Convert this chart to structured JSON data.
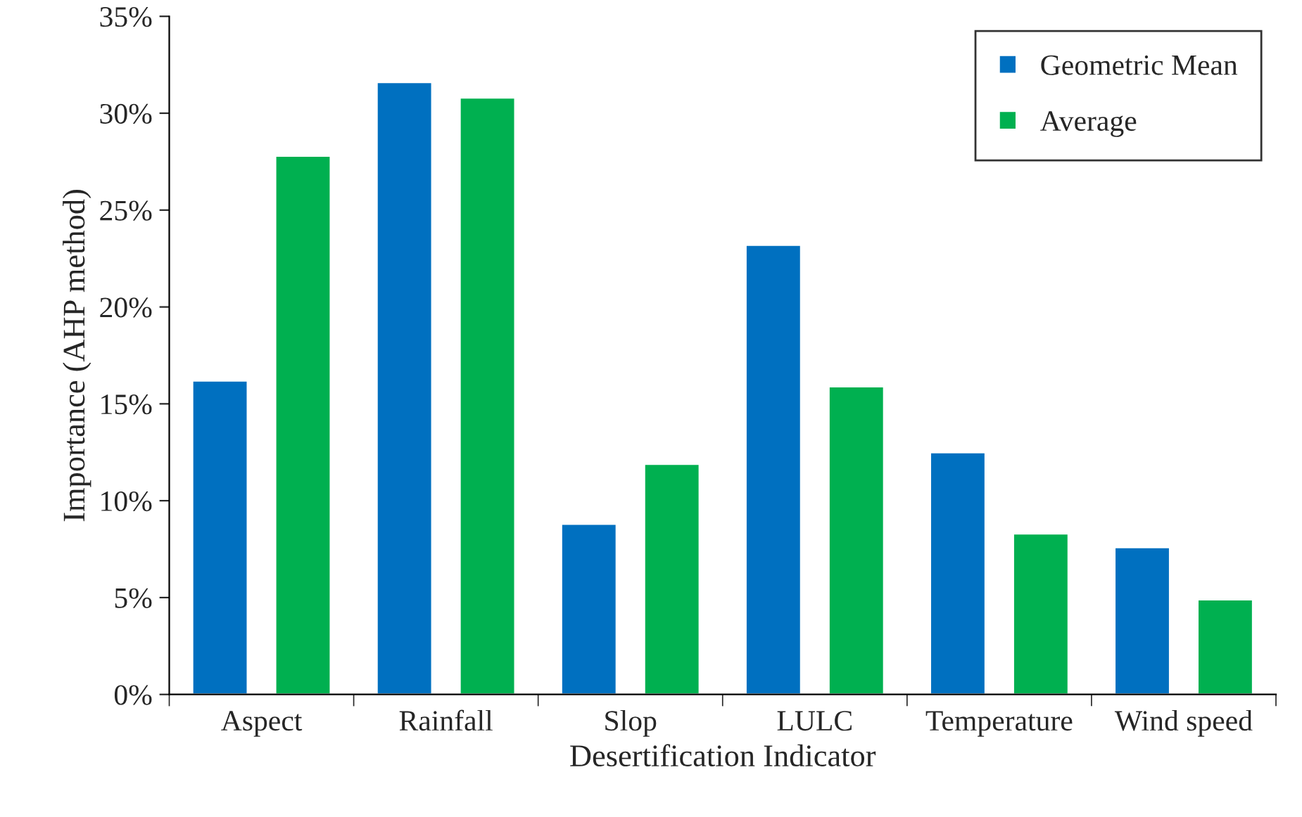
{
  "chart_data": {
    "type": "bar",
    "xlabel": "Desertification Indicator",
    "ylabel": "Importance (AHP method)",
    "categories": [
      "Aspect",
      "Rainfall",
      "Slop",
      "LULC",
      "Temperature",
      "Wind speed"
    ],
    "series": [
      {
        "name": "Geometric Mean",
        "color": "#0070c0",
        "values": [
          16.2,
          31.6,
          8.8,
          23.2,
          12.5,
          7.6
        ]
      },
      {
        "name": "Average",
        "color": "#00b050",
        "values": [
          27.8,
          30.8,
          11.9,
          15.9,
          8.3,
          4.9
        ]
      }
    ],
    "ylim": [
      0,
      35
    ],
    "yticks": [
      {
        "value": 0,
        "label": "0%"
      },
      {
        "value": 5,
        "label": "5%"
      },
      {
        "value": 10,
        "label": "10%"
      },
      {
        "value": 15,
        "label": "15%"
      },
      {
        "value": 20,
        "label": "20%"
      },
      {
        "value": 25,
        "label": "25%"
      },
      {
        "value": 30,
        "label": "30%"
      },
      {
        "value": 35,
        "label": "35%"
      }
    ],
    "legend": "top right",
    "grid": false
  }
}
